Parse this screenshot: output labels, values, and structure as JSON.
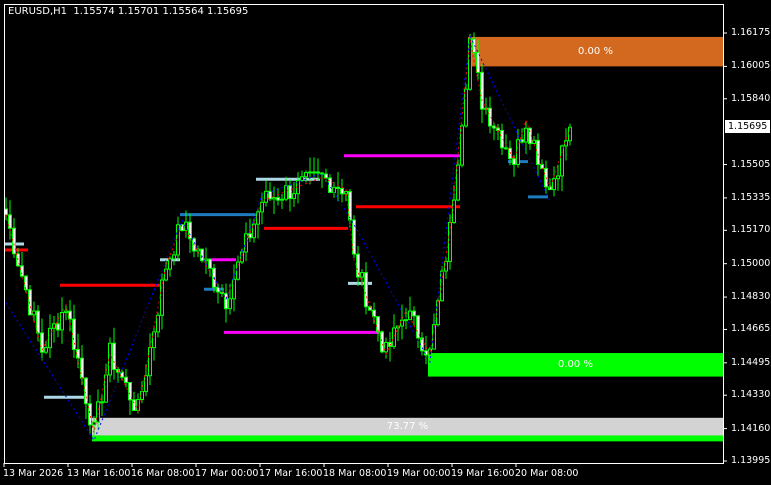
{
  "header": {
    "symbol": "EURUSD,H1",
    "open": "1.15574",
    "high": "1.15701",
    "low": "1.15564",
    "close": "1.15695"
  },
  "price_axis": {
    "labels": [
      "1.16175",
      "1.16005",
      "1.15840",
      "1.15505",
      "1.15335",
      "1.15170",
      "1.15000",
      "1.14830",
      "1.14665",
      "1.14495",
      "1.14330",
      "1.14160",
      "1.13995"
    ],
    "current_price": "1.15695"
  },
  "time_axis": {
    "labels": [
      "13 Mar 2026",
      "13 Mar 16:00",
      "16 Mar 08:00",
      "17 Mar 00:00",
      "17 Mar 16:00",
      "18 Mar 08:00",
      "19 Mar 00:00",
      "19 Mar 16:00",
      "20 Mar 08:00"
    ]
  },
  "zones": [
    {
      "label": "0.00 %",
      "color": "#d2691e",
      "top_price": 1.16155,
      "bottom_price": 1.16005,
      "start_bar": 116
    },
    {
      "label": "0.00 %",
      "color": "#00ff00",
      "top_price": 1.14545,
      "bottom_price": 1.14425,
      "start_bar": 106
    },
    {
      "label": "73.77 %",
      "color": "#d3d3d3",
      "top_price": 1.14215,
      "bottom_price": 1.14125,
      "start_bar": 22
    },
    {
      "label": "",
      "color": "#00ff00",
      "top_price": 1.14125,
      "bottom_price": 1.14095,
      "start_bar": 22
    }
  ],
  "colors": {
    "background": "#000000",
    "candle": "#00ff00",
    "zigzag_fast": "#ff0000",
    "zigzag_slow": "#0000ff",
    "axis": "#ffffff"
  },
  "chart_data": {
    "type": "candlestick",
    "symbol": "EURUSD",
    "timeframe": "H1",
    "ylim": [
      1.13995,
      1.16175
    ],
    "close_path": [
      [
        0,
        1.1525
      ],
      [
        9,
        1.1456
      ],
      [
        15,
        1.1479
      ],
      [
        22,
        1.1414
      ],
      [
        26,
        1.1454
      ],
      [
        33,
        1.1425
      ],
      [
        40,
        1.1499
      ],
      [
        44,
        1.152
      ],
      [
        55,
        1.1482
      ],
      [
        64,
        1.1532
      ],
      [
        79,
        1.1544
      ],
      [
        85,
        1.1538
      ],
      [
        87,
        1.1502
      ],
      [
        95,
        1.1454
      ],
      [
        100,
        1.1476
      ],
      [
        106,
        1.1454
      ],
      [
        111,
        1.1517
      ],
      [
        116,
        1.1614
      ],
      [
        119,
        1.1583
      ],
      [
        127,
        1.1553
      ],
      [
        130,
        1.1573
      ],
      [
        136,
        1.1538
      ],
      [
        141,
        1.15695
      ]
    ],
    "zigzag_slow": [
      [
        0,
        1.148
      ],
      [
        22,
        1.141
      ],
      [
        44,
        1.1522
      ],
      [
        55,
        1.1482
      ],
      [
        64,
        1.1535
      ],
      [
        79,
        1.1546
      ],
      [
        87,
        1.152
      ],
      [
        106,
        1.145
      ],
      [
        116,
        1.1616
      ],
      [
        136,
        1.1532
      ]
    ],
    "levels": [
      {
        "price": 1.151,
        "start": 0,
        "end": 4,
        "color": "#add8e6"
      },
      {
        "price": 1.1507,
        "start": 0,
        "end": 5,
        "color": "#ff0000"
      },
      {
        "price": 1.1489,
        "start": 14,
        "end": 38,
        "color": "#ff0000"
      },
      {
        "price": 1.1432,
        "start": 10,
        "end": 20,
        "color": "#add8e6"
      },
      {
        "price": 1.1525,
        "start": 44,
        "end": 62,
        "color": "#1e7bbf"
      },
      {
        "price": 1.1502,
        "start": 39,
        "end": 43,
        "color": "#add8e6"
      },
      {
        "price": 1.1502,
        "start": 52,
        "end": 57,
        "color": "#ff00ff"
      },
      {
        "price": 1.1487,
        "start": 50,
        "end": 54,
        "color": "#1e7bbf"
      },
      {
        "price": 1.1465,
        "start": 55,
        "end": 93,
        "color": "#ff00ff"
      },
      {
        "price": 1.1543,
        "start": 63,
        "end": 78,
        "color": "#add8e6"
      },
      {
        "price": 1.1518,
        "start": 65,
        "end": 85,
        "color": "#ff0000"
      },
      {
        "price": 1.1555,
        "start": 85,
        "end": 114,
        "color": "#ff00ff"
      },
      {
        "price": 1.1529,
        "start": 88,
        "end": 113,
        "color": "#ff0000"
      },
      {
        "price": 1.149,
        "start": 86,
        "end": 91,
        "color": "#add8e6"
      },
      {
        "price": 1.1552,
        "start": 126,
        "end": 130,
        "color": "#1e7bbf"
      },
      {
        "price": 1.1534,
        "start": 131,
        "end": 135,
        "color": "#1e7bbf"
      }
    ]
  }
}
